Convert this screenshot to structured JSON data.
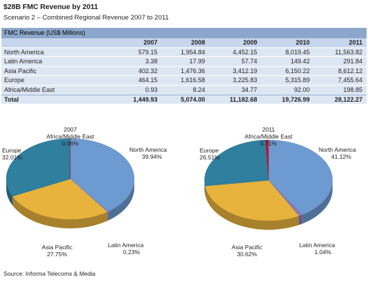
{
  "title": "$28B FMC Revenue by 2011",
  "subtitle": "Scenario 2 – Combined Regional Revenue 2007 to 2011",
  "table": {
    "header": "FMC Revenue (US$ Millions)",
    "years": [
      "2007",
      "2008",
      "2009",
      "2010",
      "2011"
    ],
    "rows": [
      {
        "region": "North America",
        "values": [
          "579.15",
          "1,954.84",
          "4,452.15",
          "8,019.45",
          "11,563.82"
        ]
      },
      {
        "region": "Latin America",
        "values": [
          "3.38",
          "17.99",
          "57.74",
          "149.42",
          "291.84"
        ]
      },
      {
        "region": "Asia Pacific",
        "values": [
          "402.32",
          "1,476.36",
          "3,412.19",
          "6,150.22",
          "8,612.12"
        ]
      },
      {
        "region": "Europe",
        "values": [
          "464.15",
          "1,616.58",
          "3,225.83",
          "5,315.89",
          "7,455.64"
        ]
      },
      {
        "region": "Africa/Middle East",
        "values": [
          "0.93",
          "8.24",
          "34.77",
          "92.00",
          "198.85"
        ]
      }
    ],
    "total": {
      "label": "Total",
      "values": [
        "1,449.93",
        "5,074.00",
        "11,182.68",
        "19,726.99",
        "28,122.27"
      ]
    }
  },
  "chart_data": [
    {
      "type": "pie",
      "title": "2007",
      "labels": [
        "North America",
        "Latin America",
        "Asia Pacific",
        "Europe",
        "Africa/Middle East"
      ],
      "values": [
        39.94,
        0.23,
        27.75,
        32.01,
        0.06
      ],
      "value_labels": [
        "39.94%",
        "0.23%",
        "27.75%",
        "32.01%",
        "0.06%"
      ],
      "colors": [
        "#6d9bd1",
        "#8e79b3",
        "#e8b33c",
        "#2f7f9e",
        "#c8102e"
      ]
    },
    {
      "type": "pie",
      "title": "2011",
      "labels": [
        "North America",
        "Latin America",
        "Asia Pacific",
        "Europe",
        "Africa/Middle East"
      ],
      "values": [
        41.12,
        1.04,
        30.62,
        26.51,
        0.71
      ],
      "value_labels": [
        "41.12%",
        "1.04%",
        "30.62%",
        "26.51%",
        "0.71%"
      ],
      "colors": [
        "#6d9bd1",
        "#8e79b3",
        "#e8b33c",
        "#2f7f9e",
        "#c8102e"
      ]
    }
  ],
  "source": "Source: Informa Telecoms & Media"
}
